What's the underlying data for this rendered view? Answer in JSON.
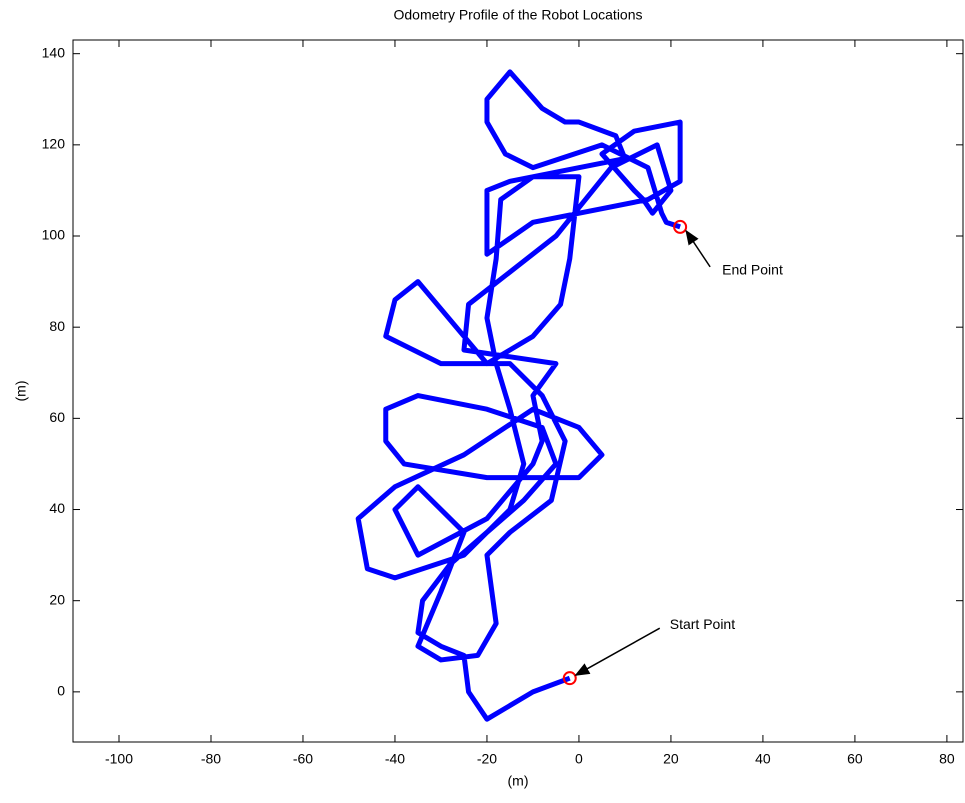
{
  "chart_data": {
    "type": "line",
    "title": "Odometry Profile of the Robot Locations",
    "xlabel": "(m)",
    "ylabel": "(m)",
    "xlim": [
      -110,
      83.5
    ],
    "ylim": [
      -11,
      143
    ],
    "xticks": [
      -100,
      -80,
      -60,
      -40,
      -20,
      0,
      20,
      40,
      60,
      80
    ],
    "yticks": [
      0,
      20,
      40,
      60,
      80,
      100,
      120,
      140
    ],
    "grid": false,
    "series": [
      {
        "color": "#0000ff",
        "x": [
          -2,
          -10,
          -20,
          -24,
          -25,
          -30,
          -35,
          -34,
          -28,
          -20,
          -12,
          -5,
          -8,
          -20,
          -35,
          -42,
          -42,
          -38,
          -20,
          0,
          5,
          0,
          -10,
          -25,
          -40,
          -48,
          -46,
          -40,
          -25,
          -15,
          -12,
          -15,
          -18,
          -20,
          -18,
          -17,
          -10,
          0,
          -2,
          -4,
          -10,
          -20,
          -30,
          -35,
          -40,
          -42,
          -30,
          -15,
          -8,
          -3,
          -6,
          -15,
          -20,
          -18,
          -22,
          -30,
          -35,
          -30,
          -25,
          -35,
          -40,
          -35,
          -20,
          -10,
          -8,
          -10,
          -5,
          -25,
          -24,
          -5,
          7,
          17,
          20,
          16,
          14,
          12,
          5,
          12,
          22,
          22,
          15,
          -10,
          -20,
          -20,
          -15,
          10,
          8,
          0,
          -3,
          -8,
          -15,
          -20,
          -20,
          -16,
          -10,
          5,
          15,
          18,
          19,
          22
        ],
        "y": [
          3,
          0,
          -6,
          0,
          8,
          10,
          13,
          20,
          28,
          35,
          42,
          50,
          58,
          62,
          65,
          62,
          55,
          50,
          47,
          47,
          52,
          58,
          62,
          52,
          45,
          38,
          27,
          25,
          30,
          40,
          50,
          62,
          72,
          82,
          95,
          108,
          113,
          113,
          95,
          85,
          78,
          72,
          84,
          90,
          86,
          78,
          72,
          72,
          65,
          55,
          42,
          35,
          30,
          15,
          8,
          7,
          10,
          22,
          35,
          45,
          40,
          30,
          38,
          50,
          55,
          65,
          72,
          75,
          85,
          100,
          115,
          120,
          110,
          105,
          108,
          110,
          118,
          123,
          125,
          112,
          108,
          103,
          96,
          110,
          112,
          117,
          122,
          125,
          125,
          128,
          136,
          130,
          125,
          118,
          115,
          120,
          115,
          105,
          103,
          102
        ]
      }
    ],
    "markers": {
      "color": "#ff0000",
      "x": [
        -2,
        22
      ],
      "y": [
        3,
        102
      ]
    },
    "annotations": [
      "Start Point",
      "End Point"
    ]
  }
}
